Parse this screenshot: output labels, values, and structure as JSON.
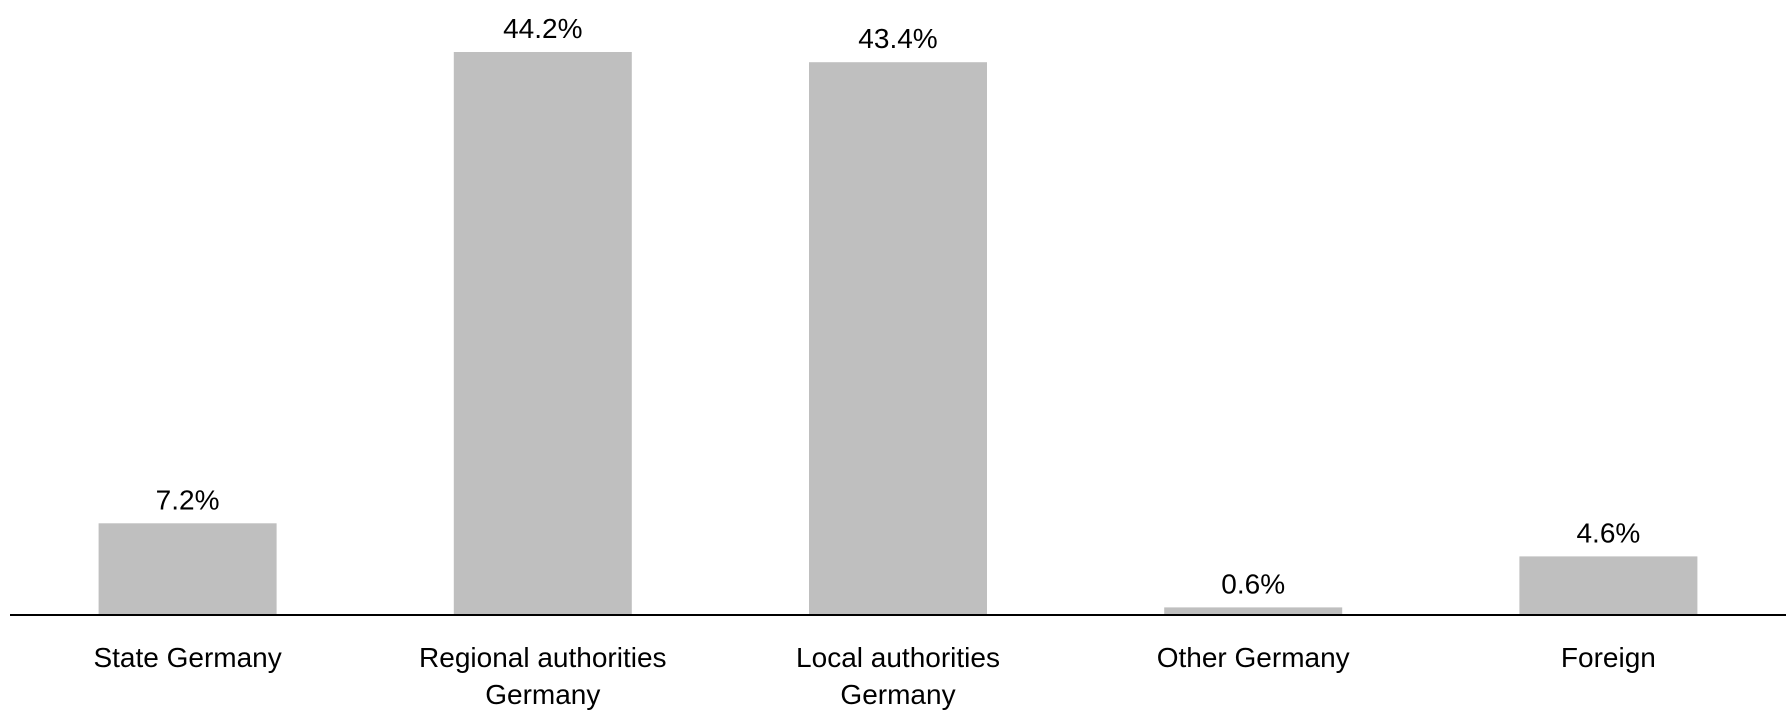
{
  "chart_data": {
    "type": "bar",
    "title": "",
    "xlabel": "",
    "ylabel": "",
    "categories": [
      [
        "State Germany"
      ],
      [
        "Regional authorities",
        "Germany"
      ],
      [
        "Local authorities",
        "Germany"
      ],
      [
        "Other Germany"
      ],
      [
        "Foreign"
      ]
    ],
    "values": [
      7.2,
      44.2,
      43.4,
      0.6,
      4.6
    ],
    "data_labels": [
      "7.2%",
      "44.2%",
      "43.4%",
      "0.6%",
      "4.6%"
    ],
    "value_unit": "%",
    "ylim": [
      0,
      44.2
    ],
    "grid": false,
    "legend": "none",
    "colors": {
      "bar": "#bfbfbf",
      "axis": "#000000",
      "text": "#000000"
    }
  }
}
